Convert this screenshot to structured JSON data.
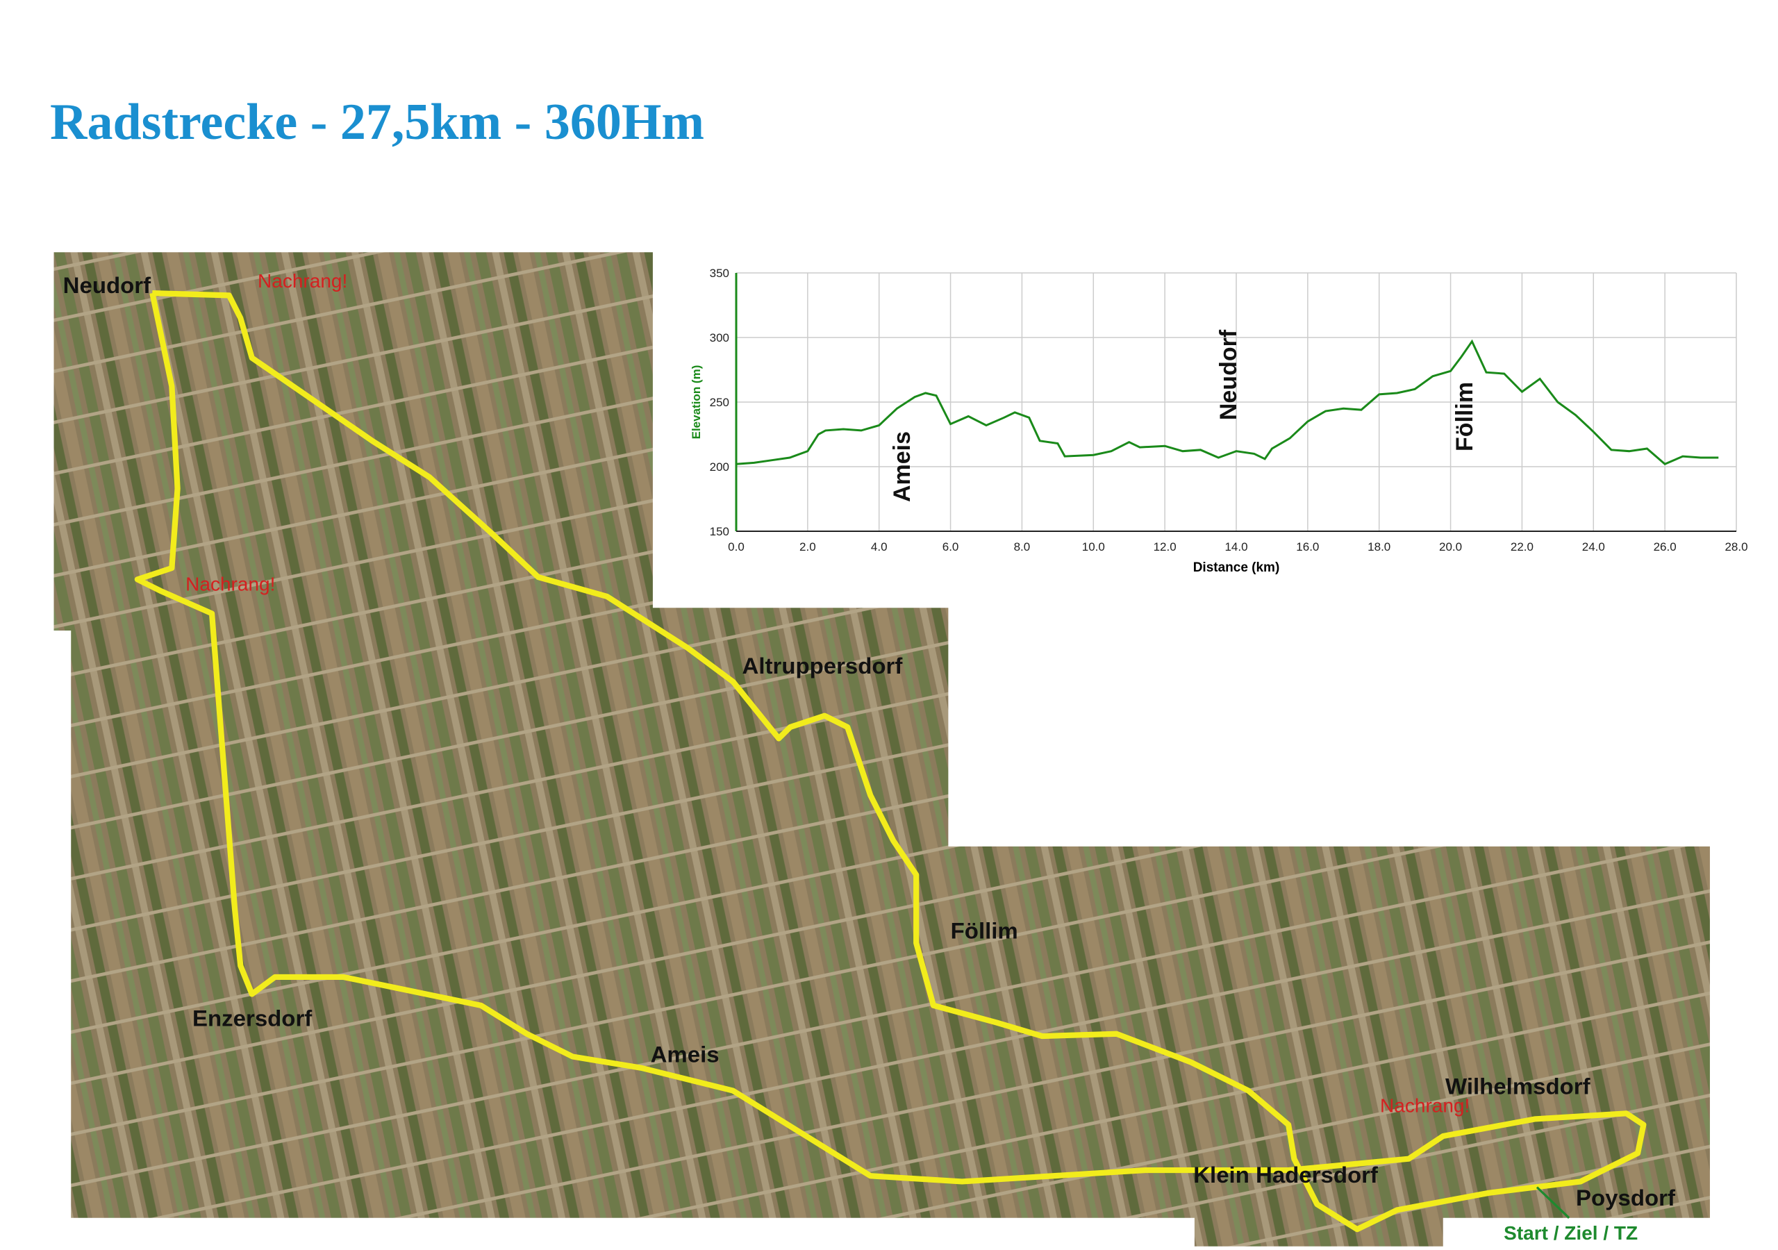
{
  "title": "Radstrecke - 27,5km - 360Hm",
  "map": {
    "labels": [
      "Neudorf",
      "Altruppersdorf",
      "Föllim",
      "Enzersdorf",
      "Ameis",
      "Wilhelmsdorf",
      "Klein Hadersdorf",
      "Poysdorf"
    ],
    "warnings": [
      "Nachrang!",
      "Nachrang!",
      "Nachrang!"
    ],
    "start": "Start / Ziel / TZ"
  },
  "chart_data": {
    "type": "line",
    "xlabel": "Distance (km)",
    "ylabel": "Elevation (m)",
    "x": [
      0,
      0.5,
      1,
      1.5,
      2,
      2.3,
      2.5,
      3,
      3.5,
      4,
      4.5,
      5,
      5.3,
      5.6,
      6,
      6.5,
      7,
      7.5,
      7.8,
      8.2,
      8.5,
      9,
      9.2,
      10,
      10.5,
      11,
      11.3,
      12,
      12.5,
      13,
      13.5,
      14,
      14.5,
      14.8,
      15,
      15.5,
      16,
      16.5,
      17,
      17.5,
      18,
      18.5,
      19,
      19.5,
      20,
      20.3,
      20.6,
      21,
      21.5,
      22,
      22.5,
      23,
      23.5,
      24,
      24.5,
      25,
      25.5,
      26,
      26.5,
      27,
      27.5
    ],
    "series": [
      {
        "name": "Elevation",
        "color": "#1a8a1a",
        "values": [
          202,
          203,
          205,
          207,
          212,
          225,
          228,
          229,
          228,
          232,
          245,
          254,
          257,
          255,
          233,
          239,
          232,
          238,
          242,
          238,
          220,
          218,
          208,
          209,
          212,
          219,
          215,
          216,
          212,
          213,
          207,
          212,
          210,
          206,
          214,
          222,
          235,
          243,
          245,
          244,
          256,
          257,
          260,
          270,
          274,
          285,
          297,
          273,
          272,
          258,
          268,
          250,
          240,
          227,
          213,
          212,
          214,
          202,
          208,
          207,
          207
        ]
      }
    ],
    "xlim": [
      0,
      28
    ],
    "ylim": [
      150,
      350
    ],
    "xticks": [
      {
        "value": 0,
        "label": "0.0"
      },
      {
        "value": 2,
        "label": "2.0"
      },
      {
        "value": 4,
        "label": "4.0"
      },
      {
        "value": 6,
        "label": "6.0"
      },
      {
        "value": 8,
        "label": "8.0"
      },
      {
        "value": 10,
        "label": "10.0"
      },
      {
        "value": 12,
        "label": "12.0"
      },
      {
        "value": 14,
        "label": "14.0"
      },
      {
        "value": 16,
        "label": "16.0"
      },
      {
        "value": 18,
        "label": "18.0"
      },
      {
        "value": 20,
        "label": "20.0"
      },
      {
        "value": 22,
        "label": "22.0"
      },
      {
        "value": 24,
        "label": "24.0"
      },
      {
        "value": 26,
        "label": "26.0"
      },
      {
        "value": 28,
        "label": "28.0"
      }
    ],
    "yticks": [
      150,
      200,
      250,
      300,
      350
    ],
    "grid": true,
    "annotations": [
      "Ameis",
      "Neudorf",
      "Föllim"
    ]
  }
}
